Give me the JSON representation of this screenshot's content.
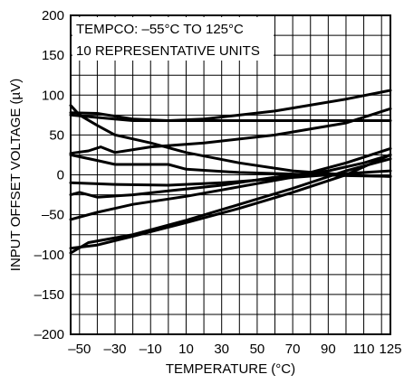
{
  "chart_data": {
    "type": "line",
    "title": "",
    "xlabel": "TEMPERATURE (°C)",
    "ylabel": "INPUT OFFSET VOLTAGE (µV)",
    "xlim": [
      -55,
      125
    ],
    "ylim": [
      -200,
      200
    ],
    "grid": true,
    "x_ticks": [
      -50,
      -30,
      -10,
      10,
      30,
      50,
      70,
      90,
      110,
      125
    ],
    "x_tick_labels": [
      "–50",
      "–30",
      "–10",
      "10",
      "30",
      "50",
      "70",
      "90",
      "110",
      "125"
    ],
    "y_ticks": [
      200,
      150,
      100,
      50,
      0,
      -50,
      -100,
      -150,
      -200
    ],
    "y_tick_labels": [
      "200",
      "150",
      "100",
      "50",
      "0",
      "–50",
      "–100",
      "–150",
      "–200"
    ],
    "annotations": [
      "TEMPCO: –55°C TO 125°C",
      "10 REPRESENTATIVE UNITS"
    ],
    "series": [
      {
        "x": [
          -55,
          -40,
          -20,
          0,
          20,
          60,
          100,
          125
        ],
        "y": [
          78,
          77,
          70,
          68,
          68,
          68,
          68,
          68
        ]
      },
      {
        "x": [
          -55,
          -40,
          -20,
          0,
          20,
          60,
          100,
          125
        ],
        "y": [
          75,
          72,
          68,
          68,
          70,
          80,
          95,
          106
        ]
      },
      {
        "x": [
          -55,
          -50,
          -40,
          -30,
          -10,
          10,
          40,
          70,
          100,
          125
        ],
        "y": [
          87,
          75,
          62,
          50,
          40,
          28,
          15,
          5,
          0,
          -2
        ]
      },
      {
        "x": [
          -55,
          -45,
          -38,
          -30,
          -10,
          20,
          60,
          100,
          125
        ],
        "y": [
          27,
          30,
          35,
          28,
          35,
          40,
          50,
          65,
          83
        ]
      },
      {
        "x": [
          -55,
          -40,
          -30,
          -10,
          0,
          10,
          40,
          70,
          100,
          125
        ],
        "y": [
          25,
          18,
          13,
          13,
          13,
          7,
          3,
          1,
          -1,
          -2
        ]
      },
      {
        "x": [
          -55,
          -30,
          0,
          30,
          60,
          90,
          110,
          125
        ],
        "y": [
          -10,
          -12,
          -13,
          -10,
          -5,
          0,
          3,
          5
        ]
      },
      {
        "x": [
          -55,
          -50,
          -40,
          -20,
          0,
          30,
          60,
          90,
          110,
          125
        ],
        "y": [
          -25,
          -22,
          -28,
          -25,
          -20,
          -13,
          -3,
          5,
          15,
          25
        ]
      },
      {
        "x": [
          -55,
          -40,
          -20,
          10,
          40,
          70,
          100,
          125
        ],
        "y": [
          -56,
          -47,
          -37,
          -27,
          -15,
          -3,
          15,
          33
        ]
      },
      {
        "x": [
          -55,
          -40,
          -20,
          10,
          40,
          70,
          100,
          125
        ],
        "y": [
          -92,
          -88,
          -77,
          -60,
          -42,
          -22,
          0,
          25
        ]
      },
      {
        "x": [
          -55,
          -45,
          -20,
          10,
          40,
          70,
          100,
          125
        ],
        "y": [
          -98,
          -85,
          -75,
          -57,
          -37,
          -17,
          5,
          20
        ]
      }
    ]
  }
}
